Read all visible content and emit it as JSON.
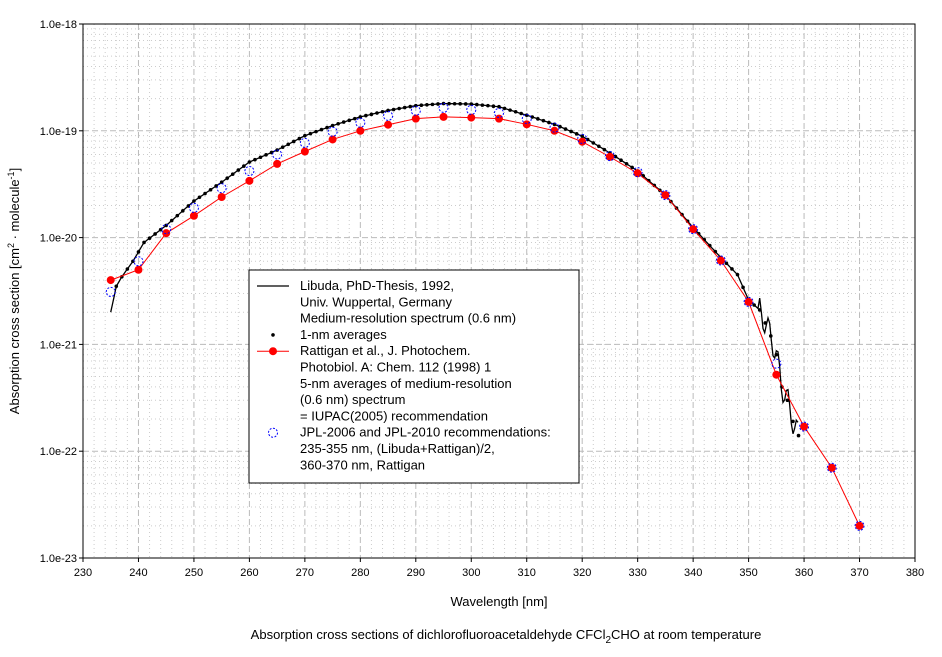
{
  "chart_data": {
    "type": "line",
    "title": "Absorption cross sections of dichlorofluoroacetaldehyde CFCl2CHO at room temperature",
    "title_parts": {
      "pre": "Absorption cross sections of dichlorofluoroacetaldehyde CFCl",
      "sub": "2",
      "post": "CHO at room temperature"
    },
    "xlabel": "Wavelength [nm]",
    "ylabel_parts": {
      "a": "Absorption cross section [cm",
      "sup1": "2",
      "b": " · molecule",
      "sup2": "-1",
      "c": "]"
    },
    "xlim": [
      230,
      380
    ],
    "ylim": [
      1e-23,
      1e-18
    ],
    "yscale": "log",
    "grid": true,
    "legend_position": "center-left",
    "x_ticks": [
      "230",
      "240",
      "250",
      "260",
      "270",
      "280",
      "290",
      "300",
      "310",
      "320",
      "330",
      "340",
      "350",
      "360",
      "370",
      "380"
    ],
    "y_ticks": [
      "1.0e-23",
      "1.0e-22",
      "1.0e-21",
      "1.0e-20",
      "1.0e-19",
      "1.0e-18"
    ],
    "series": [
      {
        "name": "Libuda medium-resolution spectrum",
        "legend": [
          "Libuda, PhD-Thesis, 1992,",
          "Univ. Wuppertal, Germany",
          "Medium-resolution spectrum (0.6 nm)"
        ],
        "color": "#000000",
        "style": "line",
        "x": [
          235,
          236,
          237,
          239,
          241,
          245,
          250,
          255,
          260,
          265,
          270,
          275,
          280,
          285,
          290,
          295,
          300,
          305,
          310,
          315,
          320,
          325,
          330,
          335,
          340,
          345,
          348,
          350,
          352,
          354,
          355,
          356,
          357,
          358,
          359
        ],
        "y": [
          2e-21,
          3.5e-21,
          4.3e-21,
          6e-21,
          9e-21,
          1.3e-20,
          2.2e-20,
          3.3e-20,
          5.1e-20,
          6.6e-20,
          9e-20,
          1.12e-19,
          1.35e-19,
          1.55e-19,
          1.72e-19,
          1.8e-19,
          1.78e-19,
          1.68e-19,
          1.4e-19,
          1.15e-19,
          8.9e-20,
          6.2e-20,
          4.2e-20,
          2.5e-20,
          1.24e-20,
          6.5e-21,
          4.5e-21,
          2.6e-21,
          2.1e-21,
          1.2e-21,
          8e-22,
          4e-22,
          3e-22,
          1.9e-22,
          1.4e-22
        ]
      },
      {
        "name": "1-nm averages",
        "legend": [
          "1-nm averages"
        ],
        "color": "#000000",
        "style": "dots"
      },
      {
        "name": "Rattigan",
        "legend": [
          "Rattigan et al., J. Photochem.",
          "Photobiol. A: Chem. 112 (1998) 1",
          "5-nm averages of medium-resolution",
          "(0.6 nm) spectrum",
          "= IUPAC(2005) recommendation"
        ],
        "color": "#ff0000",
        "style": "line+marker",
        "x": [
          235,
          240,
          245,
          250,
          255,
          260,
          265,
          270,
          275,
          280,
          285,
          290,
          295,
          300,
          305,
          310,
          315,
          320,
          325,
          330,
          335,
          340,
          345,
          350,
          355,
          360,
          365,
          370
        ],
        "y": [
          4e-21,
          5e-21,
          1.1e-20,
          1.6e-20,
          2.4e-20,
          3.4e-20,
          4.9e-20,
          6.4e-20,
          8.3e-20,
          1e-19,
          1.14e-19,
          1.3e-19,
          1.35e-19,
          1.33e-19,
          1.3e-19,
          1.15e-19,
          1e-19,
          7.9e-20,
          5.7e-20,
          4e-20,
          2.5e-20,
          1.2e-20,
          6.1e-21,
          2.5e-21,
          5.2e-22,
          1.7e-22,
          7e-23,
          2e-23
        ]
      },
      {
        "name": "JPL-2006 and JPL-2010",
        "legend": [
          "JPL-2006 and JPL-2010 recommendations:",
          "235-355 nm, (Libuda+Rattigan)/2,",
          "360-370 nm, Rattigan"
        ],
        "color": "#0000ff",
        "style": "open-circle",
        "x": [
          235,
          240,
          245,
          250,
          255,
          260,
          265,
          270,
          275,
          280,
          285,
          290,
          295,
          300,
          305,
          310,
          315,
          320,
          325,
          330,
          335,
          340,
          345,
          350,
          355,
          360,
          365,
          370
        ],
        "y": [
          3.1e-21,
          6e-21,
          1.2e-20,
          1.9e-20,
          2.9e-20,
          4.2e-20,
          6e-20,
          7.7e-20,
          9.8e-20,
          1.19e-19,
          1.38e-19,
          1.54e-19,
          1.64e-19,
          1.57e-19,
          1.47e-19,
          1.29e-19,
          1.07e-19,
          8.4e-20,
          5.8e-20,
          4.1e-20,
          2.5e-20,
          1.2e-20,
          6.1e-21,
          2.5e-21,
          6.6e-22,
          1.7e-22,
          7e-23,
          2e-23
        ]
      }
    ]
  }
}
